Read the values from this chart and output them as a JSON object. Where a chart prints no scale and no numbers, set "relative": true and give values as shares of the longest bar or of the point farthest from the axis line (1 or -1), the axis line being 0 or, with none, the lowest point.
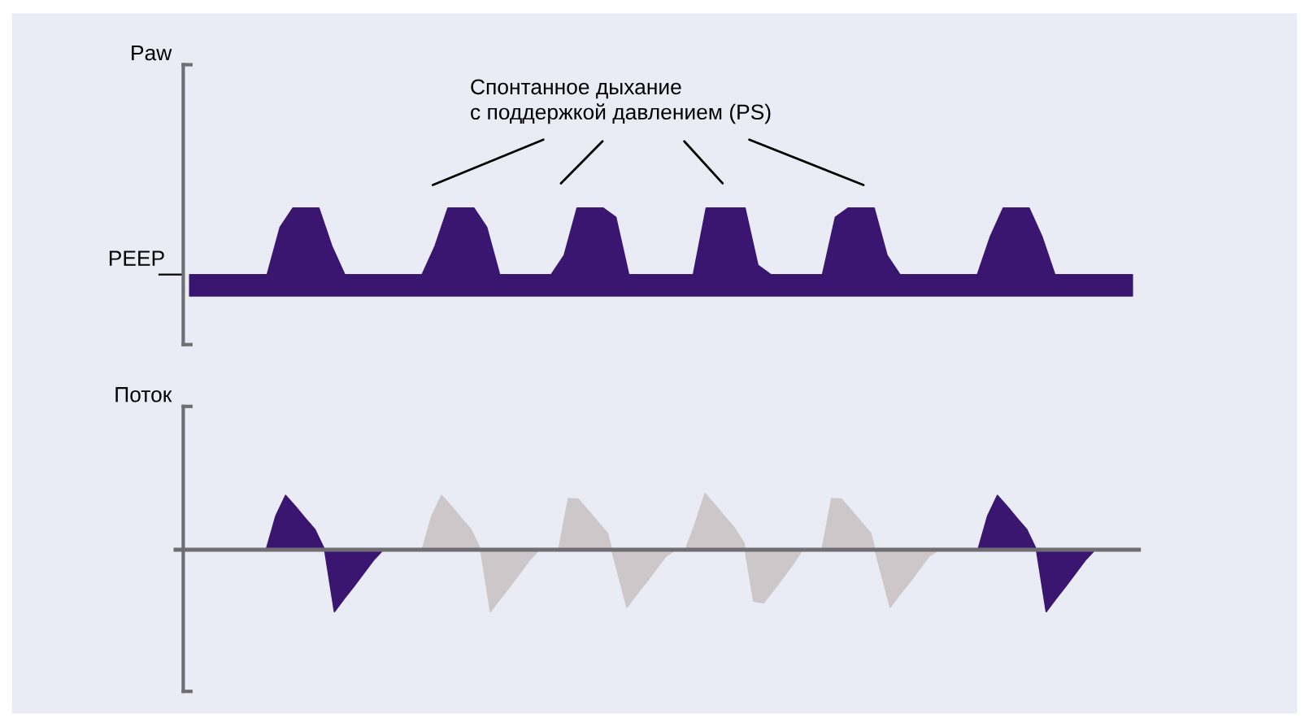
{
  "chart_data": [
    {
      "type": "area",
      "relative": true,
      "ylabel": "Paw",
      "categories": [
        null,
        null,
        null,
        null,
        null,
        null,
        null,
        null,
        null,
        null,
        null,
        null,
        null,
        null,
        null,
        null,
        null,
        null,
        null,
        null,
        null,
        null,
        null,
        null,
        null,
        null,
        null,
        null,
        null,
        null,
        null,
        null,
        null,
        null,
        null,
        null,
        null,
        null,
        null,
        null,
        null,
        null,
        null,
        null,
        null,
        null,
        null,
        null,
        null,
        null,
        null,
        null,
        null,
        null,
        null,
        null,
        null,
        null,
        null,
        null,
        null,
        null,
        null,
        null,
        null,
        null,
        null,
        null,
        null,
        null,
        null,
        null,
        null,
        null
      ],
      "series": [
        {
          "color": "#3a1670",
          "values": [
            0,
            0,
            0,
            0,
            0,
            0,
            0,
            0.71,
            1,
            1,
            1,
            0.43,
            0,
            0,
            0,
            0,
            0,
            0,
            0,
            0.43,
            1,
            1,
            1,
            0.71,
            0,
            0,
            0,
            0,
            0,
            0.29,
            1,
            1,
            1,
            0.86,
            0,
            0,
            0,
            0,
            0,
            0,
            1,
            1,
            1,
            1,
            0.14,
            0,
            0,
            0,
            0,
            0,
            0.86,
            1,
            1,
            1,
            0.29,
            0,
            0,
            0,
            0,
            0,
            0,
            0,
            0.57,
            1,
            1,
            1,
            0.57,
            0,
            0,
            0,
            0,
            0,
            0,
            0
          ]
        }
      ],
      "annotations": [
        "PEEP",
        "Спонтанное дыхание\nс поддержкой давлением (PS)"
      ]
    },
    {
      "type": "area",
      "relative": true,
      "ylabel": "Поток",
      "categories": [
        null,
        null,
        null,
        null,
        null,
        null,
        null,
        null,
        null,
        null,
        null,
        null,
        null,
        null,
        null,
        null,
        null,
        null,
        null,
        null,
        null,
        null,
        null,
        null,
        null,
        null,
        null,
        null,
        null,
        null,
        null,
        null,
        null,
        null,
        null,
        null,
        null,
        null,
        null,
        null,
        null,
        null,
        null,
        null,
        null,
        null,
        null,
        null,
        null,
        null,
        null,
        null,
        null,
        null,
        null,
        null,
        null,
        null,
        null,
        null,
        null,
        null,
        null,
        null,
        null,
        null,
        null,
        null,
        null,
        null,
        null,
        null,
        null,
        null,
        null,
        null,
        null,
        null,
        null,
        null,
        null,
        null,
        null,
        null,
        null,
        null,
        null,
        null,
        null,
        null,
        null,
        null,
        null,
        null,
        null,
        null,
        null,
        null
      ],
      "series": [
        {
          "color": "#3a1670",
          "values": [
            0,
            0,
            0,
            0,
            0,
            0,
            0,
            0,
            0,
            0.55,
            0.88,
            0.7,
            0.51,
            0.33,
            0,
            -1,
            -0.79,
            -0.59,
            -0.38,
            -0.17,
            0,
            null,
            null,
            null,
            null,
            null,
            null,
            null,
            null,
            null,
            null,
            null,
            null,
            null,
            null,
            null,
            null,
            null,
            null,
            null,
            null,
            null,
            null,
            null,
            null,
            null,
            null,
            null,
            null,
            null,
            null,
            null,
            null,
            null,
            null,
            null,
            null,
            null,
            null,
            null,
            null,
            null,
            null,
            null,
            null,
            null,
            null,
            null,
            null,
            null,
            null,
            null,
            null,
            null,
            null,
            null,
            null,
            null,
            null,
            null,
            null,
            0,
            0.55,
            0.88,
            0.7,
            0.51,
            0.33,
            0,
            -1,
            -0.79,
            -0.59,
            -0.38,
            -0.17,
            0,
            0,
            0,
            0,
            0
          ]
        },
        {
          "color": "#cdc7c9",
          "values": [
            null,
            null,
            null,
            null,
            null,
            null,
            null,
            null,
            null,
            null,
            null,
            null,
            null,
            null,
            null,
            null,
            null,
            null,
            null,
            null,
            null,
            null,
            null,
            null,
            0,
            0.55,
            0.88,
            0.7,
            0.51,
            0.33,
            0,
            -1,
            -0.79,
            -0.59,
            -0.38,
            -0.17,
            0,
            0,
            0,
            0.83,
            0.82,
            0.64,
            0.45,
            0.27,
            -0.33,
            -0.93,
            -0.72,
            -0.52,
            -0.31,
            -0.1,
            0,
            0,
            0.42,
            0.91,
            0.73,
            0.54,
            0.36,
            0.11,
            -0.83,
            -0.86,
            -0.66,
            -0.45,
            -0.24,
            0,
            0,
            0,
            0.83,
            0.82,
            0.64,
            0.45,
            0.27,
            -0.33,
            -0.93,
            -0.72,
            -0.52,
            -0.31,
            -0.1,
            0,
            null,
            null,
            null,
            null,
            null,
            null,
            null,
            null,
            null,
            null,
            null,
            null,
            null,
            null,
            null,
            null,
            null,
            null,
            null,
            null
          ]
        }
      ]
    }
  ]
}
